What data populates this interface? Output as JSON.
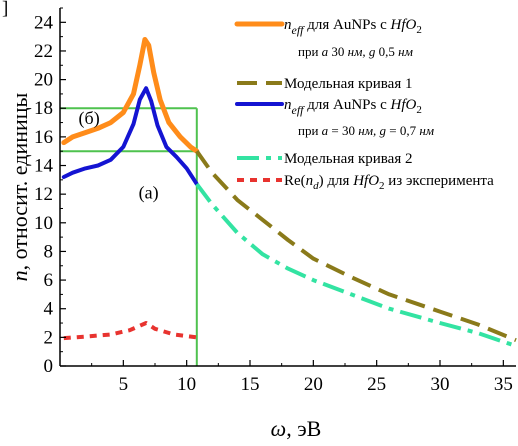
{
  "chart_data": {
    "type": "line",
    "xlabel_symbol": "ω",
    "xlabel_unit": ", эВ",
    "ylabel_symbol": "n",
    "ylabel_text": ", относит. единицы",
    "xlim": [
      0,
      36
    ],
    "ylim": [
      0,
      25
    ],
    "x_ticks": [
      5,
      10,
      15,
      20,
      25,
      30,
      35
    ],
    "y_ticks": [
      0,
      2,
      4,
      6,
      8,
      10,
      12,
      14,
      16,
      18,
      20,
      22,
      24
    ],
    "corner_label": "]",
    "annotations": [
      {
        "text": "(б)",
        "x": 2.3,
        "y": 16.9
      },
      {
        "text": "(a)",
        "x": 7.0,
        "y": 11.7
      }
    ],
    "series": [
      {
        "id": "orange",
        "color": "#FF8C1A",
        "style": "solid",
        "points": [
          [
            0.3,
            15.6
          ],
          [
            1,
            16.0
          ],
          [
            2,
            16.3
          ],
          [
            3,
            16.6
          ],
          [
            4,
            17.0
          ],
          [
            5,
            17.7
          ],
          [
            5.8,
            19.0
          ],
          [
            6.3,
            21.0
          ],
          [
            6.7,
            22.8
          ],
          [
            7.0,
            22.4
          ],
          [
            7.4,
            20.5
          ],
          [
            7.9,
            18.6
          ],
          [
            8.6,
            17.0
          ],
          [
            9.5,
            16.0
          ],
          [
            10.3,
            15.3
          ],
          [
            10.8,
            15.0
          ]
        ]
      },
      {
        "id": "blue",
        "color": "#1414D2",
        "style": "solid",
        "points": [
          [
            0.3,
            13.2
          ],
          [
            1,
            13.5
          ],
          [
            2,
            13.8
          ],
          [
            3,
            14.0
          ],
          [
            4,
            14.4
          ],
          [
            5,
            15.3
          ],
          [
            5.8,
            16.9
          ],
          [
            6.3,
            18.6
          ],
          [
            6.8,
            19.4
          ],
          [
            7.2,
            18.5
          ],
          [
            7.7,
            16.8
          ],
          [
            8.4,
            15.3
          ],
          [
            9.2,
            14.6
          ],
          [
            10.0,
            13.8
          ],
          [
            10.8,
            12.7
          ]
        ]
      },
      {
        "id": "olive",
        "color": "#8A7A1A",
        "style": "dashed",
        "points": [
          [
            10.8,
            15.0
          ],
          [
            12,
            13.5
          ],
          [
            14,
            11.6
          ],
          [
            16,
            10.2
          ],
          [
            18,
            8.8
          ],
          [
            20,
            7.5
          ],
          [
            23,
            6.2
          ],
          [
            26,
            5.0
          ],
          [
            30,
            3.8
          ],
          [
            33,
            2.9
          ],
          [
            36,
            1.8
          ]
        ]
      },
      {
        "id": "green",
        "color": "#33E3A2",
        "style": "dashdot",
        "points": [
          [
            10.8,
            12.7
          ],
          [
            12,
            11.3
          ],
          [
            14,
            9.3
          ],
          [
            16,
            7.8
          ],
          [
            18,
            6.8
          ],
          [
            20,
            6.0
          ],
          [
            23,
            5.0
          ],
          [
            26,
            4.0
          ],
          [
            30,
            3.0
          ],
          [
            33,
            2.3
          ],
          [
            36,
            1.4
          ]
        ]
      },
      {
        "id": "red",
        "color": "#E8332F",
        "style": "dotted",
        "points": [
          [
            0.3,
            1.95
          ],
          [
            2,
            2.05
          ],
          [
            4,
            2.2
          ],
          [
            5.5,
            2.5
          ],
          [
            6.8,
            3.0
          ],
          [
            7.5,
            2.6
          ],
          [
            9,
            2.2
          ],
          [
            10.8,
            2.0
          ]
        ]
      }
    ],
    "guide_box": {
      "color": "#4FC24F",
      "x_left": 0,
      "x_right": 10.8,
      "y_top": 18,
      "y_bottom": 15
    },
    "legend": [
      {
        "series": "orange",
        "label_main": "eff",
        "label_pre": "n",
        "label_rest": " для AuNPs с ",
        "label_mat": "HfO",
        "label_sub": "2",
        "line2_pre": "при ",
        "line2_a": "a",
        "line2_mid": "  30 ",
        "line2_nm": "нм",
        "line2_g": ", g",
        "line2_val": "  0,5 ",
        "line2_nm2": "нм"
      },
      {
        "series": "olive",
        "label": "Модельная кривая 1"
      },
      {
        "series": "blue",
        "label_main": "eff",
        "label_pre": "n",
        "label_rest": " для AuNPs с ",
        "label_mat": "HfO",
        "label_sub": "2",
        "line2_pre": "при ",
        "line2_a": "a",
        "line2_mid": " = 30 ",
        "line2_nm": "нм",
        "line2_g": ", g",
        "line2_val": " = 0,7 ",
        "line2_nm2": "нм"
      },
      {
        "series": "green",
        "label": "Модельная кривая 2"
      },
      {
        "series": "red",
        "label_pre": "Re(",
        "label_n": "n",
        "label_d": "d",
        "label_mid": ") для ",
        "label_mat": "HfO",
        "label_sub": "2",
        "label_end": " из эксперимента"
      }
    ]
  }
}
